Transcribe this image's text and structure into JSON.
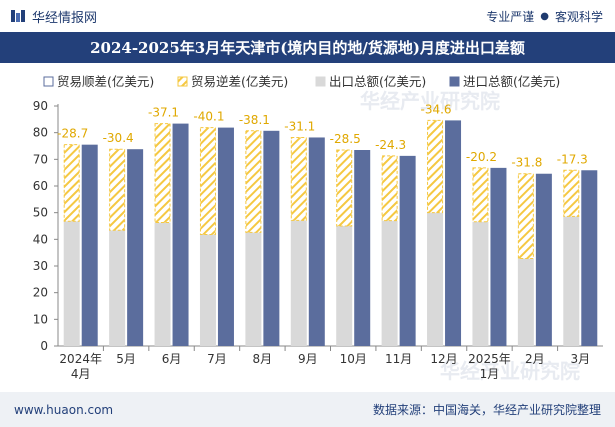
{
  "header": {
    "brand": "华经情报网",
    "tag1": "专业严谨",
    "tag2": "客观科学"
  },
  "title": "2024-2025年3月年天津市(境内目的地/货源地)月度进出口差额",
  "footer": {
    "url": "www.huaon.com",
    "source": "数据来源：中国海关，华经产业研究院整理"
  },
  "watermark": "华经产业研究院",
  "colors": {
    "export": "#d9d9d9",
    "import": "#5b6d9d",
    "deficit_stripe": "#f5c842",
    "surplus_legend": "#5b6d9d",
    "title_bg": "#23407a"
  },
  "chart_data": {
    "type": "bar",
    "categories": [
      "2024年\n4月",
      "5月",
      "6月",
      "7月",
      "8月",
      "9月",
      "10月",
      "11月",
      "12月",
      "2025年\n1月",
      "2月",
      "3月"
    ],
    "legend": [
      "贸易顺差(亿美元)",
      "贸易逆差(亿美元)",
      "出口总额(亿美元)",
      "进口总额(亿美元)"
    ],
    "series": [
      {
        "name": "出口总额(亿美元)",
        "values": [
          46.8,
          43.4,
          46.3,
          41.8,
          42.6,
          47.1,
          45.0,
          47.0,
          50.0,
          46.6,
          32.8,
          48.6
        ]
      },
      {
        "name": "进口总额(亿美元)",
        "values": [
          75.5,
          73.8,
          83.4,
          81.9,
          80.7,
          78.2,
          73.5,
          71.3,
          84.6,
          66.8,
          64.6,
          65.9
        ]
      },
      {
        "name": "贸易逆差(亿美元)",
        "values": [
          -28.7,
          -30.4,
          -37.1,
          -40.1,
          -38.1,
          -31.1,
          -28.5,
          -24.3,
          -34.6,
          -20.2,
          -31.8,
          -17.3
        ]
      }
    ],
    "data_labels": [
      "-28.7",
      "-30.4",
      "-37.1",
      "-40.1",
      "-38.1",
      "-31.1",
      "-28.5",
      "-24.3",
      "-34.6",
      "-20.2",
      "-31.8",
      "-17.3"
    ],
    "ylim": [
      0,
      90
    ],
    "yticks": [
      "0",
      "10",
      "20",
      "30",
      "40",
      "50",
      "60",
      "70",
      "80",
      "90"
    ],
    "legend_position": "top",
    "grid": false
  }
}
